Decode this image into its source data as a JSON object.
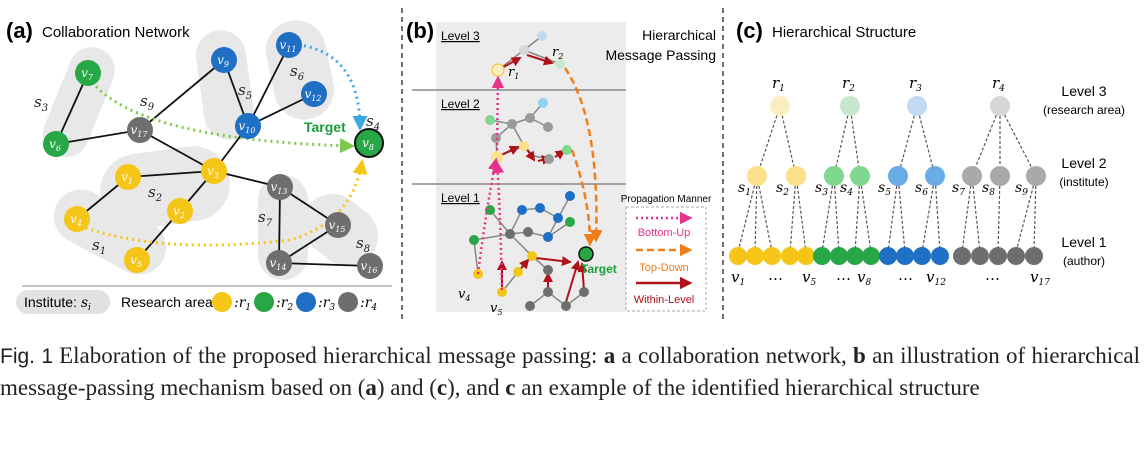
{
  "colors": {
    "r1": "#f5c518",
    "r2": "#27a745",
    "r3": "#1f6fc4",
    "r4": "#6e6e6e",
    "r1_light": "#fbeec0",
    "r2_light": "#c7e8cc",
    "r3_light": "#c3d9f1",
    "r4_light": "#d6d6d6",
    "green_text": "#1a9e3a",
    "red_arrow": "#b0121a",
    "pink": "#e6328c",
    "orange": "#f07d1a",
    "lightblue": "#8fd1f0"
  },
  "panel_a": {
    "label": "(a)",
    "title": "Collaboration Network",
    "target": "Target",
    "institutes": {
      "s1": "s",
      "s1_sub": "1",
      "s2": "s",
      "s2_sub": "2",
      "s3": "s",
      "s3_sub": "3",
      "s4": "s",
      "s4_sub": "4",
      "s5": "s",
      "s5_sub": "5",
      "s6": "s",
      "s6_sub": "6",
      "s7": "s",
      "s7_sub": "7",
      "s8": "s",
      "s8_sub": "8",
      "s9": "s",
      "s9_sub": "9"
    },
    "nodes": {
      "v1": "1",
      "v2": "2",
      "v3": "3",
      "v4": "4",
      "v5": "5",
      "v6": "6",
      "v7": "7",
      "v8": "8",
      "v9": "9",
      "v10": "10",
      "v11": "11",
      "v12": "12",
      "v13": "13",
      "v14": "14",
      "v15": "15",
      "v16": "16",
      "v17": "17"
    },
    "node_letter": "v",
    "legend": {
      "institute": "Institute: ",
      "institute_s": "s",
      "institute_sub": "i",
      "research_area": "Research area",
      "r_prefix": ":r",
      "r1": "1",
      "r2": "2",
      "r3": "3",
      "r4": "4"
    }
  },
  "panel_b": {
    "label": "(b)",
    "title_line1": "Hierarchical",
    "title_line2": "Message Passing",
    "level3": "Level 3",
    "level2": "Level 2",
    "level1": "Level 1",
    "r1": "r",
    "r1_sub": "1",
    "r2": "r",
    "r2_sub": "2",
    "v4": "v",
    "v4_sub": "4",
    "v5": "v",
    "v5_sub": "5",
    "target": "Target",
    "legend": {
      "title": "Propagation Manner",
      "bottom_up": "Bottom-Up",
      "top_down": "Top-Down",
      "within": "Within-Level"
    }
  },
  "panel_c": {
    "label": "(c)",
    "title": "Hierarchical Structure",
    "r_labels": [
      {
        "t": "r",
        "s": "1"
      },
      {
        "t": "r",
        "s": "2"
      },
      {
        "t": "r",
        "s": "3"
      },
      {
        "t": "r",
        "s": "4"
      }
    ],
    "s_labels": [
      {
        "t": "s",
        "s": "1"
      },
      {
        "t": "s",
        "s": "2"
      },
      {
        "t": "s",
        "s": "3"
      },
      {
        "t": "s",
        "s": "4"
      },
      {
        "t": "s",
        "s": "5"
      },
      {
        "t": "s",
        "s": "6"
      },
      {
        "t": "s",
        "s": "7"
      },
      {
        "t": "s",
        "s": "8"
      },
      {
        "t": "s",
        "s": "9"
      }
    ],
    "v_labels": [
      {
        "t": "v",
        "s": "1"
      },
      {
        "t": "v",
        "s": "5"
      },
      {
        "t": "v",
        "s": "8"
      },
      {
        "t": "v",
        "s": "12"
      },
      {
        "t": "v",
        "s": "17"
      }
    ],
    "dots": "…",
    "level3": "Level 3",
    "level3_sub": "(research area)",
    "level2": "Level 2",
    "level2_sub": "(institute)",
    "level1": "Level 1",
    "level1_sub": "(author)"
  },
  "caption": {
    "fig_label": "Fig. 1",
    "t1": "Elaboration of the proposed hierarchical message passing: ",
    "a": "a",
    "t2": " a collaboration network, ",
    "b": "b",
    "t3": " an illustration of hierarchical message-passing mechanism based on (",
    "a2": "a",
    "t4": ") and (",
    "c2": "c",
    "t5": "), and ",
    "c": "c",
    "t6": " an example of the identified hierarchical structure"
  }
}
